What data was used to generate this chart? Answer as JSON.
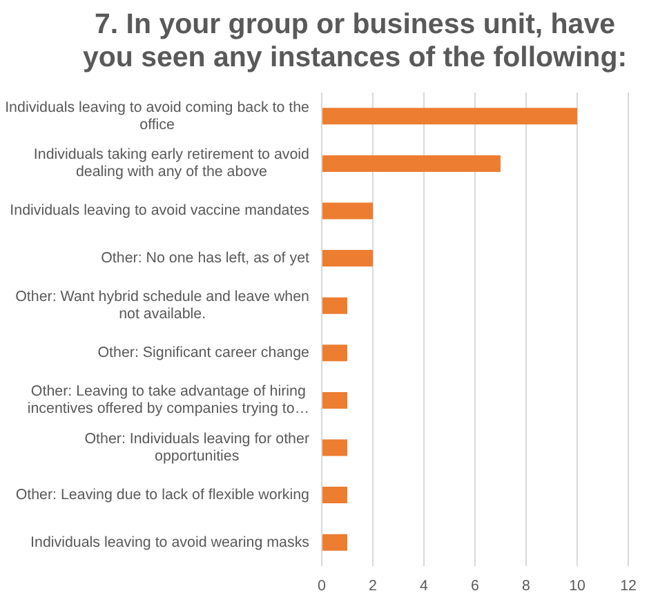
{
  "chart_data": {
    "type": "bar",
    "orientation": "horizontal",
    "title": "7. In your group or business unit, have you seen any instances of the following:",
    "categories": [
      "Individuals leaving to avoid coming back to the office",
      "Individuals taking early retirement to avoid dealing with any of the above",
      "Individuals leaving to avoid vaccine mandates",
      "Other: No one has left, as of yet",
      "Other: Want hybrid schedule and leave when not available.",
      "Other: Significant career change",
      "Other: Leaving to take advantage of hiring incentives offered by companies trying to…",
      "Other: Individuals leaving for other opportunities",
      "Other: Leaving due to lack of flexible working",
      "Individuals leaving to avoid wearing masks"
    ],
    "values": [
      10,
      7,
      2,
      2,
      1,
      1,
      1,
      1,
      1,
      1
    ],
    "color": "#ed7d31",
    "xlim": [
      0,
      12
    ],
    "xticks": [
      0,
      2,
      4,
      6,
      8,
      10,
      12
    ],
    "grid": "x"
  }
}
